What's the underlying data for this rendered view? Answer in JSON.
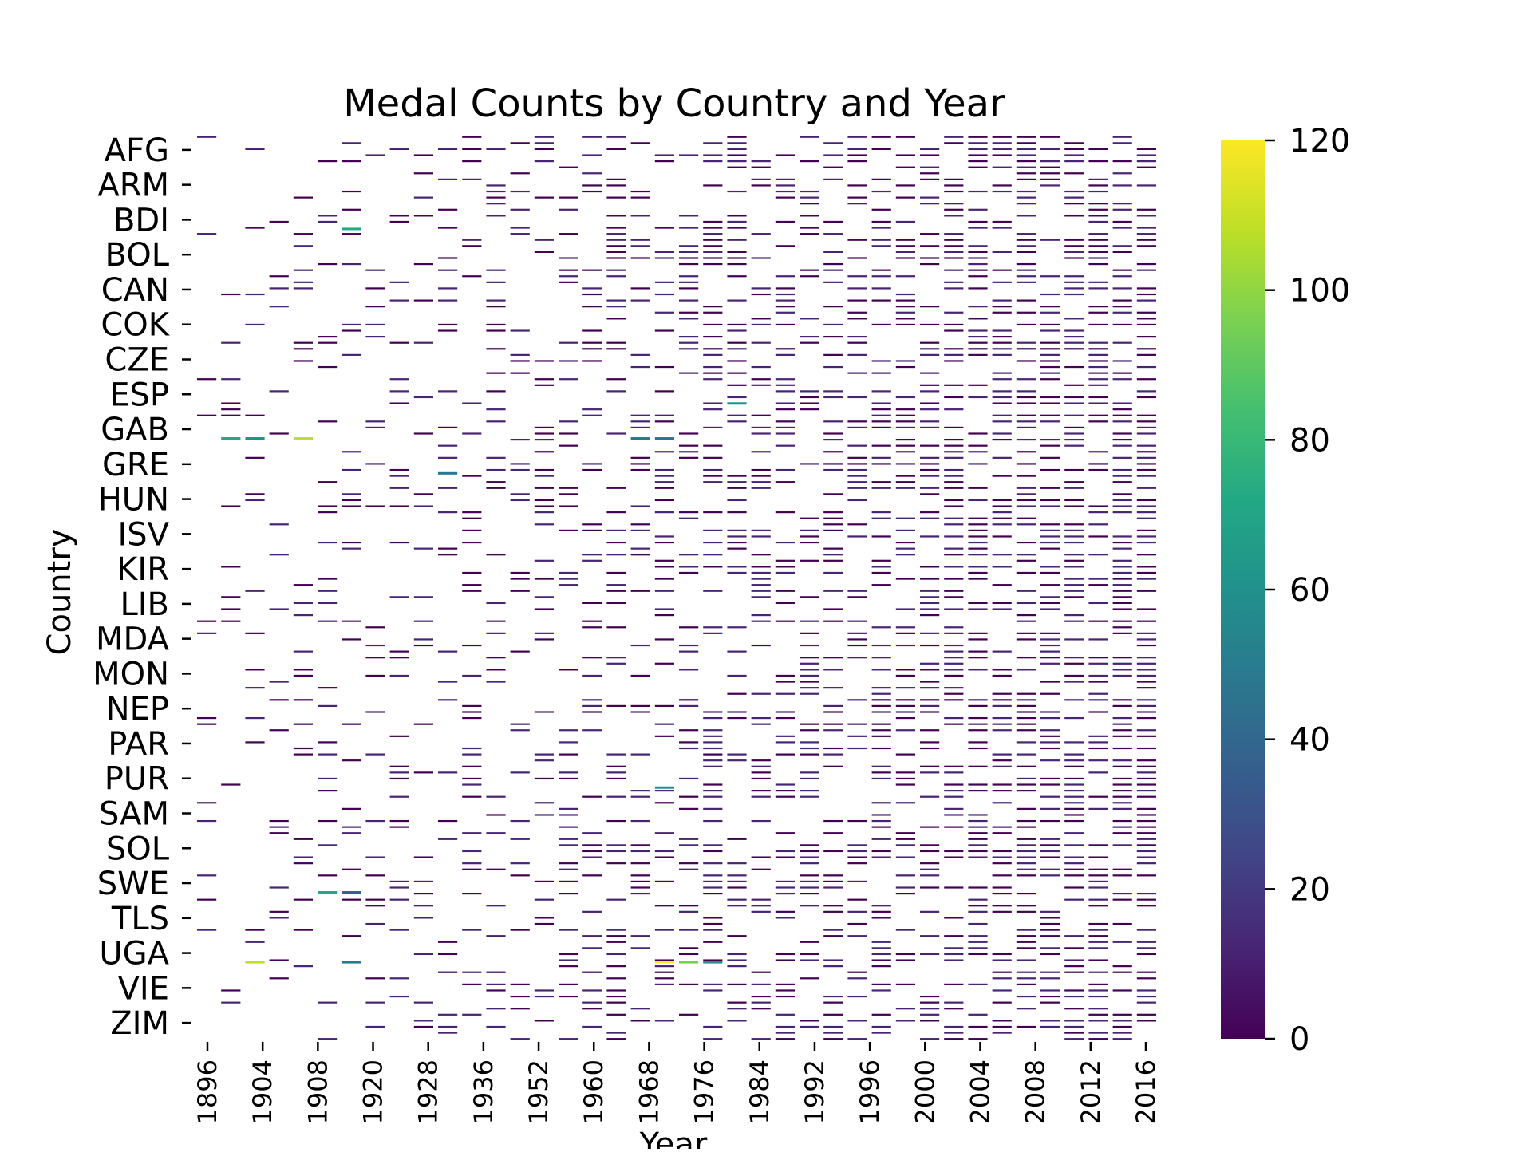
{
  "chart_data": {
    "type": "heatmap",
    "title": "Medal Counts by Country and Year",
    "xlabel": "Year",
    "ylabel": "Country",
    "x_tick_labels": [
      "1896",
      "1904",
      "1908",
      "1920",
      "1928",
      "1936",
      "1952",
      "1960",
      "1968",
      "1976",
      "1984",
      "1992",
      "1996",
      "2000",
      "2004",
      "2008",
      "2012",
      "2016"
    ],
    "y_tick_labels": [
      "AFG",
      "ARM",
      "BDI",
      "BOL",
      "CAN",
      "COK",
      "CZE",
      "ESP",
      "GAB",
      "GRE",
      "HUN",
      "ISV",
      "KIR",
      "LIB",
      "MDA",
      "MON",
      "NEP",
      "PAR",
      "PUR",
      "SAM",
      "SOL",
      "SWE",
      "TLS",
      "UGA",
      "VIE",
      "ZIM"
    ],
    "colorbar": {
      "colormap": "viridis",
      "range": [
        0,
        120
      ],
      "tick_labels": [
        "0",
        "20",
        "40",
        "60",
        "80",
        "100",
        "120"
      ]
    },
    "grid": false,
    "note_values": "Sparse medal matrix; most cells 0-10 (dark purple). Highlighted cells listed in highlights.",
    "highlights": [
      {
        "country": "BDI",
        "year": "1920",
        "value": 75
      },
      {
        "country": "GAB",
        "year": "1900",
        "value": 70
      },
      {
        "country": "GAB",
        "year": "1908",
        "value": 105
      },
      {
        "country": "GAB",
        "year": "1904",
        "value": 55
      },
      {
        "country": "GRE",
        "year": "1936",
        "value": 45
      },
      {
        "country": "ESP",
        "year": "1992",
        "value": 60
      },
      {
        "country": "SWE",
        "year": "1912",
        "value": 70
      },
      {
        "country": "SWE",
        "year": "1920",
        "value": 40
      },
      {
        "country": "UGA",
        "year": "1904",
        "value": 110
      },
      {
        "country": "UGA",
        "year": "1980",
        "value": 115
      },
      {
        "country": "UGA",
        "year": "1984",
        "value": 90
      },
      {
        "country": "UGA",
        "year": "1988",
        "value": 60
      },
      {
        "country": "UGA",
        "year": "1920",
        "value": 45
      },
      {
        "country": "PUR",
        "year": "1980",
        "value": 55
      },
      {
        "country": "GAB",
        "year": "1980",
        "value": 50
      },
      {
        "country": "GAB",
        "year": "1976",
        "value": 45
      }
    ]
  }
}
